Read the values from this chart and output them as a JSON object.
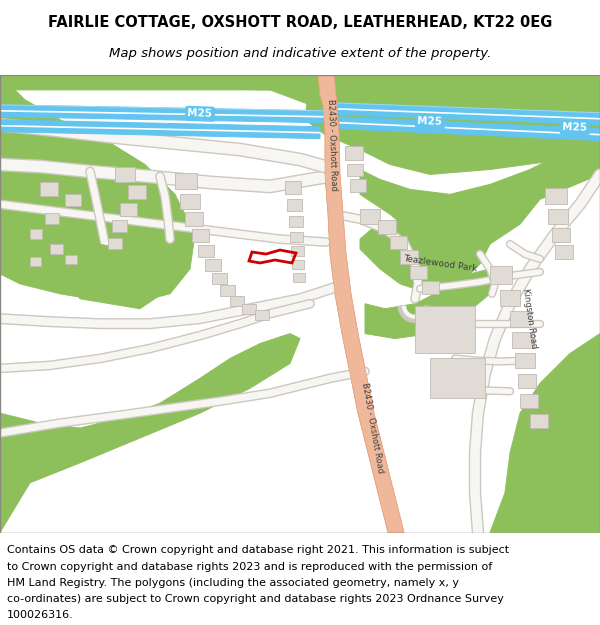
{
  "title_line1": "FAIRLIE COTTAGE, OXSHOTT ROAD, LEATHERHEAD, KT22 0EG",
  "title_line2": "Map shows position and indicative extent of the property.",
  "footer_text_lines": [
    "Contains OS data © Crown copyright and database right 2021. This information is subject",
    "to Crown copyright and database rights 2023 and is reproduced with the permission of",
    "HM Land Registry. The polygons (including the associated geometry, namely x, y",
    "co-ordinates) are subject to Crown copyright and database rights 2023 Ordnance Survey",
    "100026316."
  ],
  "map_bg": "#ede9e3",
  "green_color": "#8dc05a",
  "road_salmon": "#f0b89a",
  "road_salmon_edge": "#e8a080",
  "motorway_blue": "#62c4ef",
  "motorway_white_stripe": "#ffffff",
  "building_fill": "#e0dbd4",
  "building_edge": "#c0bab3",
  "white_road_fill": "#f8f6f2",
  "grey_road_edge": "#ccc8c0",
  "red_outline": "#cc0000",
  "m25_label_bg": "#62c4ef",
  "m25_label_text": "#ffffff",
  "dark_text": "#404040",
  "title_fontsize": 10.5,
  "subtitle_fontsize": 9.5,
  "footer_fontsize": 8.0,
  "map_border_color": "#888880"
}
